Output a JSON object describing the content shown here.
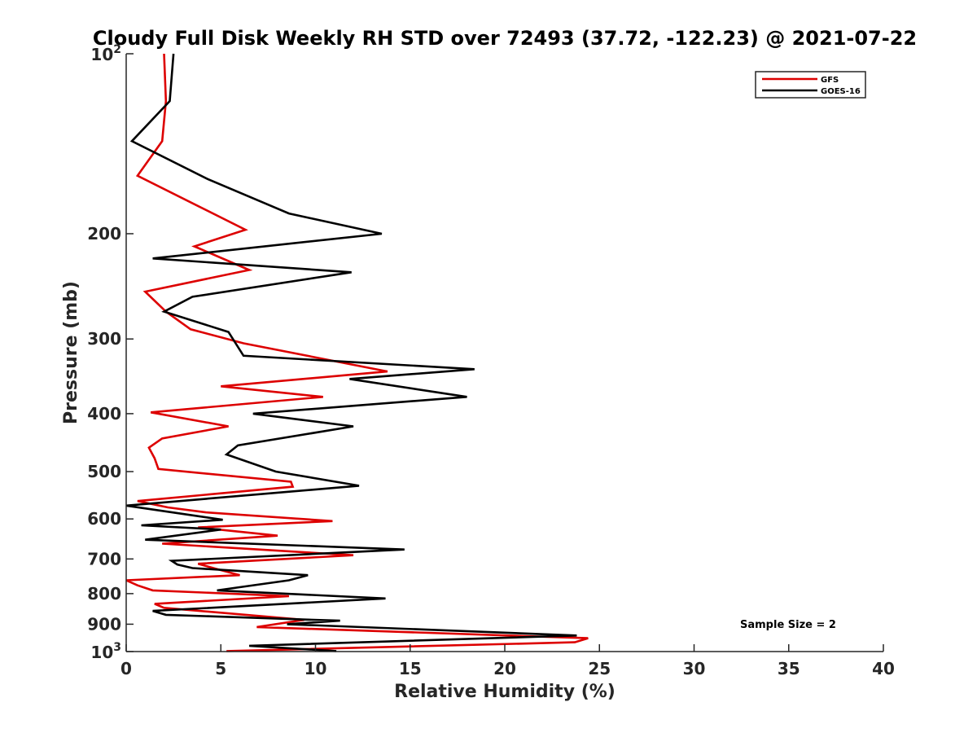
{
  "chart_data": {
    "type": "line",
    "title": "Cloudy Full Disk Weekly RH STD over 72493 (37.72, -122.23) @ 2021-07-22",
    "xlabel": "Relative Humidity (%)",
    "ylabel": "Pressure (mb)",
    "xlim": [
      0,
      40
    ],
    "ylim": [
      100,
      1000
    ],
    "y_scale": "log",
    "y_reversed": true,
    "x_ticks": [
      0,
      5,
      10,
      15,
      20,
      25,
      30,
      35,
      40
    ],
    "y_ticks": [
      200,
      300,
      400,
      500,
      600,
      700,
      800,
      900
    ],
    "y_ticks_labeled_as_power": [
      {
        "value": 100,
        "base": "10",
        "exp": "2"
      },
      {
        "value": 1000,
        "base": "10",
        "exp": "3"
      }
    ],
    "grid": false,
    "legend_position": "top-right",
    "annotation": "Sample Size = 2",
    "series": [
      {
        "name": "GFS",
        "color": "#dd0000",
        "points": [
          [
            2.0,
            100
          ],
          [
            2.1,
            120
          ],
          [
            1.9,
            140
          ],
          [
            0.6,
            160
          ],
          [
            6.3,
            197
          ],
          [
            3.6,
            210
          ],
          [
            6.5,
            230
          ],
          [
            1.0,
            250
          ],
          [
            2.1,
            270
          ],
          [
            3.4,
            289
          ],
          [
            6.2,
            305
          ],
          [
            13.8,
            340
          ],
          [
            5.0,
            360
          ],
          [
            10.4,
            375
          ],
          [
            1.3,
            398
          ],
          [
            5.4,
            420
          ],
          [
            1.9,
            440
          ],
          [
            1.2,
            456
          ],
          [
            1.5,
            475
          ],
          [
            1.7,
            495
          ],
          [
            8.7,
            520
          ],
          [
            8.8,
            530
          ],
          [
            0.6,
            560
          ],
          [
            2.2,
            574
          ],
          [
            4.2,
            585
          ],
          [
            10.9,
            605
          ],
          [
            3.8,
            620
          ],
          [
            8.0,
            640
          ],
          [
            1.9,
            660
          ],
          [
            12.0,
            690
          ],
          [
            3.8,
            713
          ],
          [
            4.8,
            728
          ],
          [
            6.0,
            745
          ],
          [
            0.0,
            760
          ],
          [
            0.6,
            775
          ],
          [
            1.4,
            790
          ],
          [
            8.6,
            808
          ],
          [
            1.5,
            832
          ],
          [
            2.0,
            845
          ],
          [
            9.4,
            885
          ],
          [
            6.9,
            910
          ],
          [
            24.4,
            950
          ],
          [
            23.7,
            965
          ],
          [
            5.3,
            998
          ]
        ]
      },
      {
        "name": "GOES-16",
        "color": "#000000",
        "points": [
          [
            2.5,
            100
          ],
          [
            2.3,
            120
          ],
          [
            0.3,
            140
          ],
          [
            4.3,
            162
          ],
          [
            8.6,
            185
          ],
          [
            13.5,
            200
          ],
          [
            1.4,
            220
          ],
          [
            11.9,
            232
          ],
          [
            3.5,
            255
          ],
          [
            2.0,
            270
          ],
          [
            5.4,
            292
          ],
          [
            6.2,
            320
          ],
          [
            18.4,
            337
          ],
          [
            11.8,
            350
          ],
          [
            18.0,
            375
          ],
          [
            6.7,
            400
          ],
          [
            12.0,
            420
          ],
          [
            5.9,
            452
          ],
          [
            5.3,
            468
          ],
          [
            7.9,
            500
          ],
          [
            12.3,
            528
          ],
          [
            0.0,
            570
          ],
          [
            5.1,
            602
          ],
          [
            0.8,
            615
          ],
          [
            5.0,
            625
          ],
          [
            1.0,
            650
          ],
          [
            14.7,
            675
          ],
          [
            2.4,
            705
          ],
          [
            2.7,
            715
          ],
          [
            3.5,
            725
          ],
          [
            9.6,
            745
          ],
          [
            8.6,
            760
          ],
          [
            4.8,
            790
          ],
          [
            13.7,
            815
          ],
          [
            1.4,
            855
          ],
          [
            2.1,
            868
          ],
          [
            11.3,
            888
          ],
          [
            8.5,
            900
          ],
          [
            23.8,
            940
          ],
          [
            6.5,
            978
          ],
          [
            11.1,
            998
          ]
        ]
      }
    ]
  }
}
